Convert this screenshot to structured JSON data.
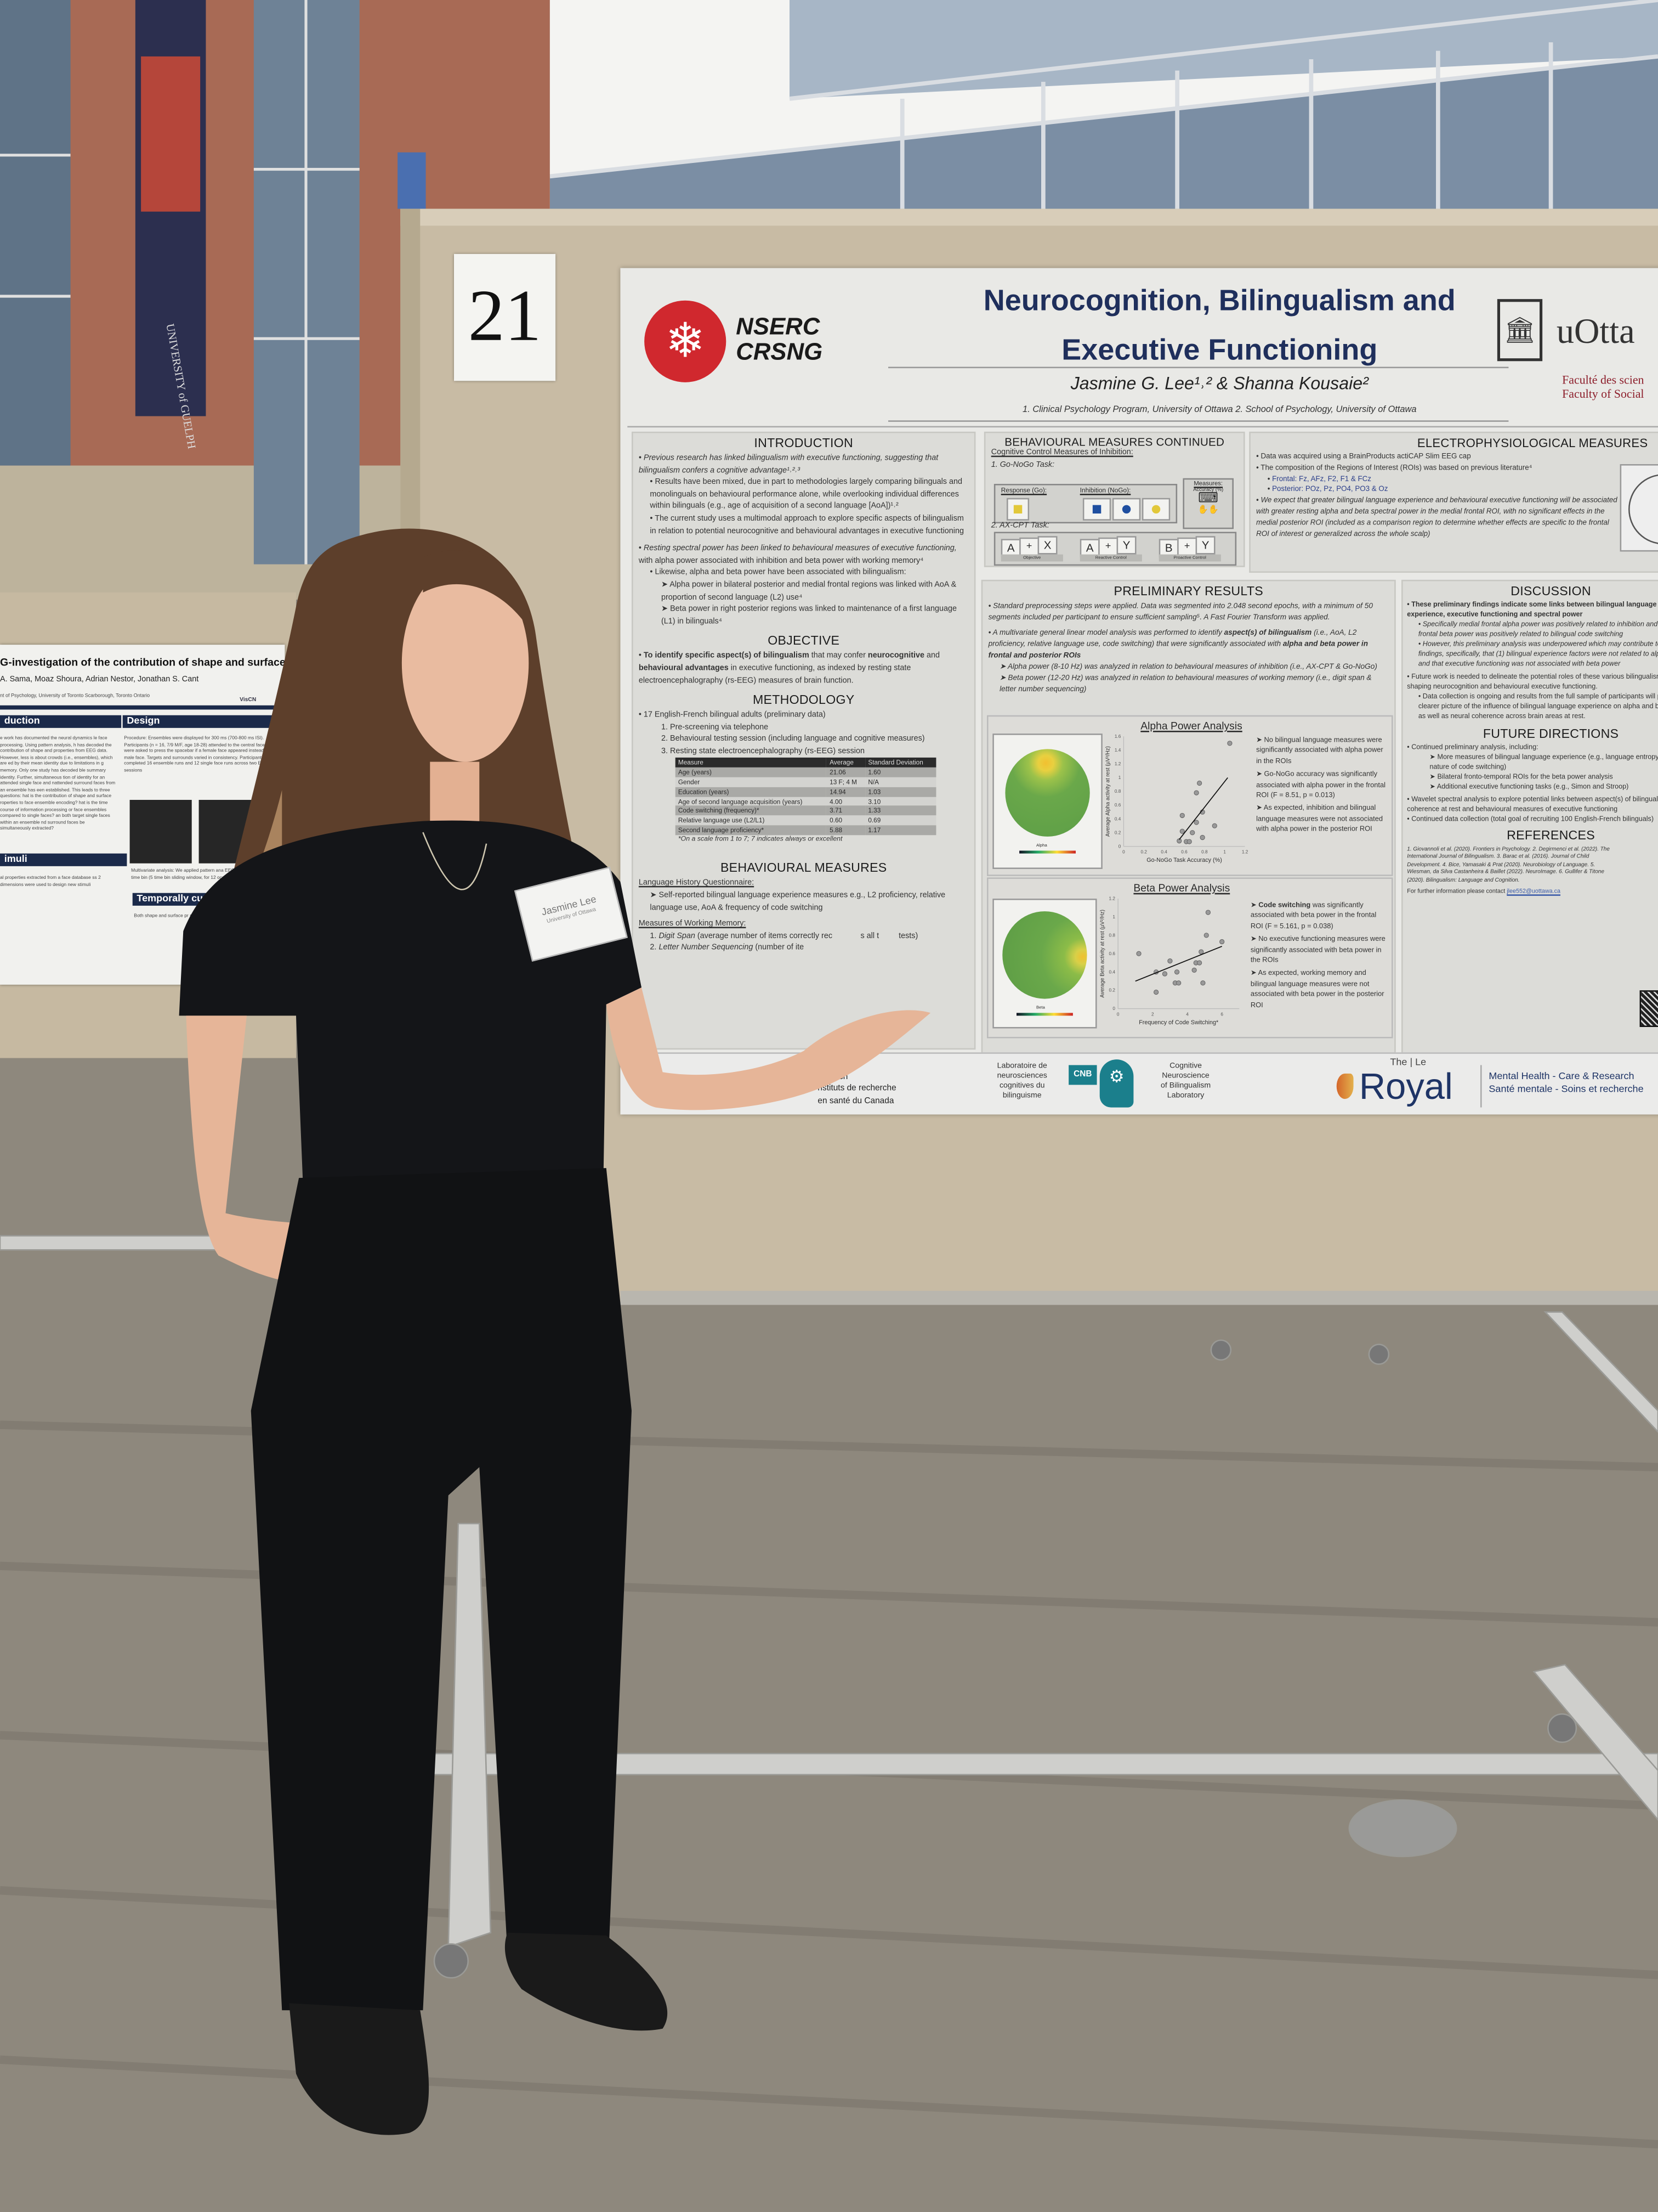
{
  "scene": {
    "booth_number": "21",
    "colors": {
      "board": "#c8bba4",
      "carpet": "#8d877c",
      "shirt": "#141518",
      "skin": "#e6b598",
      "hair": "#6a4a33",
      "poster_title": "#1f2f5c",
      "nserc_red": "#d0282e",
      "cnb_teal": "#1b7f8c"
    },
    "name_badge": {
      "name": "Jasmine Lee",
      "affiliation": "University of Ottawa"
    },
    "banner_text": "UNIVERSITY of GUELPH"
  },
  "left_poster": {
    "title": "G-investigation of the contribution of shape and surface properties i",
    "authors": "A. Sama, Moaz Shoura, Adrian Nestor, Jonathan S. Cant",
    "affiliation": "nt of Psychology, University of Toronto Scarborough, Toronto Ontario",
    "logo": "VisCN",
    "sections": {
      "intro": "duction",
      "design": "Design",
      "stimuli": "imuli",
      "temporal": "Temporally cumulati"
    },
    "intro_text": "e work has documented the neural dynamics le face processing. Using pattern analysis, h has decoded the contribution of shape and properties from EEG data. However, less is about crowds (i.e., ensembles), which are ed by their mean identity due to limitations in g memory. Only one study has decoded ble summary identity. Further, simultaneous tion of identity for an attended single face and nattended surround faces from an ensemble has een established. This leads to three questions: hat is the contribution of shape and surface roperties to face ensemble encoding? hat is the time course of information processing or face ensembles compared to single faces? an both target single faces within an ensemble nd surround faces be simultaneously extracted?",
    "design_text": "Procedure: Ensembles were displayed for 300 ms (700-800 ms ISI). Participants (n = 16, 7/9 M/F, age 18-28) attended to the central face and were asked to press the spacebar if a female face appeared instead of a male face. Targets and surrounds varied in consistency. Participants completed 16 ensemble runs and 12 single face runs across two EEG sessions",
    "multivariate_text": "Multivariate analysis: We applied pattern ana EEG signals at each time bin (5 time bin sliding window, for 12 occipotemporal el",
    "stimuli_text": "al properties extracted from a face database ss 2 dimensions were used to design new stimuli",
    "temporal_text": "Both shape and surface pr single face and face ensembl"
  },
  "poster": {
    "logo_nserc": [
      "NSERC",
      "CRSNG"
    ],
    "title_lines": [
      "Neurocognition, Bilingualism and",
      "Executive Functioning"
    ],
    "authors": "Jasmine G. Lee¹˒² & Shanna Kousaie²",
    "affiliations": "1. Clinical Psychology Program, University of Ottawa  2. School of Psychology, University of Ottawa",
    "uottawa": {
      "wordmark": "uOtta",
      "faculty_fr": "Faculté des scien",
      "faculty_en": "Faculty of Social"
    },
    "introduction": {
      "heading": "INTRODUCTION",
      "b1": "Previous research has linked bilingualism with executive functioning, suggesting that bilingualism confers a cognitive advantage¹˒²˒³",
      "b1a": "Results have been mixed, due in part to methodologies largely comparing bilinguals and monolinguals on behavioural performance alone, while overlooking individual differences within bilinguals (e.g., age of acquisition of a second language [AoA])¹˒²",
      "b1b": "The current study uses a multimodal approach to explore specific aspects of bilingualism in relation to potential neurocognitive and behavioural advantages in executive functioning",
      "b2_italic": "Resting spectral power has been linked to behavioural measures of executive functioning,",
      "b2_rest": " with alpha power associated with inhibition and beta power with working memory⁴",
      "b2a": "Likewise, alpha and beta power have been associated with bilingualism:",
      "b2a1": "Alpha power in bilateral posterior and medial frontal regions was linked with AoA & proportion of second language (L2) use⁴",
      "b2a2": "Beta power in right posterior regions was linked to maintenance of a first language (L1) in bilinguals⁴"
    },
    "objective": {
      "heading": "OBJECTIVE",
      "p1": "To identify specific aspect(s) of bilingualism",
      "p2": " that may confer ",
      "p3": "neurocognitive",
      "p4": " and ",
      "p5": "behavioural advantages",
      "p6": " in executive functioning, as indexed by resting state electroencephalography (rs-EEG) measures of brain function."
    },
    "methodology": {
      "heading": "METHODOLOGY",
      "b1": "17 English-French bilingual adults (preliminary data)",
      "steps": [
        "1.  Pre-screening via telephone",
        "2.  Behavioural testing session (including language and cognitive measures)",
        "3.  Resting state electroencephalography (rs-EEG) session"
      ],
      "table": {
        "headers": [
          "Measure",
          "Average",
          "Standard Deviation"
        ],
        "rows": [
          [
            "Age (years)",
            "21.06",
            "1.60"
          ],
          [
            "Gender",
            "13 F; 4 M",
            "N/A"
          ],
          [
            "Education (years)",
            "14.94",
            "1.03"
          ],
          [
            "Age of second language acquisition (years)",
            "4.00",
            "3.10"
          ],
          [
            "Code switching (frequency)*",
            "3.71",
            "1.33"
          ],
          [
            "Relative language use (L2/L1)",
            "0.60",
            "0.69"
          ],
          [
            "Second language proficiency*",
            "5.88",
            "1.17"
          ]
        ]
      },
      "note": "*On a scale from  1 to 7; 7 indicates always or excellent"
    },
    "behavioural": {
      "heading": "BEHAVIOURAL MEASURES",
      "lhq": "Language History Questionnaire:",
      "lhq_item": "Self-reported bilingual language experience measures e.g., L2 proficiency, relative language use, AoA & frequency of code switching",
      "wm": "Measures of Working Memory:",
      "wm1_name": "Digit Span",
      "wm1_rest": " (average number of items correctly rec",
      "wm1_tail": "s all t",
      "wm1_end": "tests)",
      "wm2_name": "Letter Number Sequencing",
      "wm2_rest": " (number of ite"
    },
    "behavioural_continued": {
      "heading": "BEHAVIOURAL MEASURES CONTINUED",
      "sub": "Cognitive Control Measures of Inhibition:",
      "task1": "1. Go-NoGo Task:",
      "go": "Response (Go):",
      "nogo": "Inhibition (NoGo):",
      "measures": "Measures:",
      "accuracy": "Accuracy (%)",
      "task2": "2. AX-CPT Task:",
      "cpt": [
        {
          "a": "A",
          "b": "X",
          "label": "Objective"
        },
        {
          "a": "A",
          "b": "Y",
          "label": "Reactive Control"
        },
        {
          "a": "B",
          "b": "Y",
          "label": "Proactive Control"
        }
      ],
      "plus": "+",
      "shape_colors": {
        "yellow": "#e2c83a",
        "blue": "#1f4fa0"
      }
    },
    "electrophysiological": {
      "heading": "ELECTROPHYSIOLOGICAL MEASURES",
      "b1": "Data was acquired using a BrainProducts actiCAP Slim EEG cap",
      "b2": "The composition of the Regions of Interest (ROIs) was based on previous literature⁴",
      "frontal": "Frontal: Fz, AFz, F2, F1 & FCz",
      "posterior": "Posterior: POz, Pz, PO4, PO3 & Oz",
      "b3": "We expect that greater bilingual language experience and behavioural executive functioning will be associated with greater resting alpha and beta spectral power in the medial frontal ROI, with no significant effects in the medial posterior ROI (included as a comparison region to determine whether effects are specific to the frontal ROI of interest or generalized across the whole scalp)"
    },
    "preliminary_results": {
      "heading": "PRELIMINARY RESULTS",
      "b1": "Standard preprocessing steps were applied. Data was segmented into 2.048 second epochs, with a minimum of 50 segments included per participant to ensure sufficient sampling⁵. A Fast Fourier Transform was applied.",
      "b2a": "A multivariate general linear model analysis was performed to identify ",
      "b2b": "aspect(s) of bilingualism",
      "b2c": " (i.e., AoA, L2 proficiency, relative language use, code switching) that were significantly associated with ",
      "b2d": "alpha and beta power in frontal and posterior ROIs",
      "alpha_item": "Alpha power (8-10 Hz) was analyzed in relation to behavioural measures of inhibition (i.e., AX-CPT & Go-NoGo)",
      "beta_item": "Beta power (12-20 Hz) was analyzed in relation to behavioural measures of working memory (i.e., digit span & letter number sequencing)"
    },
    "alpha_analysis": {
      "title": "Alpha Power Analysis",
      "scalp_label": "Alpha",
      "xlabel": "Go-NoGo Task Accuracy (%)",
      "ylabel": "Average Alpha activity at rest (µV²/Hz)",
      "xticks": [
        "0",
        "0.2",
        "0.4",
        "0.6",
        "0.8",
        "1",
        "1.2"
      ],
      "yticks": [
        "0",
        "0.2",
        "0.4",
        "0.6",
        "0.8",
        "1",
        "1.2",
        "1.4",
        "1.6"
      ],
      "xlim": [
        0,
        1.2
      ],
      "ylim": [
        0,
        1.6
      ],
      "points": [
        [
          1.05,
          1.5
        ],
        [
          0.75,
          0.92
        ],
        [
          0.72,
          0.78
        ],
        [
          0.78,
          0.5
        ],
        [
          0.58,
          0.45
        ],
        [
          0.72,
          0.35
        ],
        [
          0.9,
          0.3
        ],
        [
          0.58,
          0.22
        ],
        [
          0.68,
          0.2
        ],
        [
          0.78,
          0.13
        ],
        [
          0.55,
          0.08
        ],
        [
          0.62,
          0.07
        ],
        [
          0.65,
          0.07
        ]
      ],
      "trend": [
        [
          0.55,
          0.1
        ],
        [
          1.03,
          1.0
        ]
      ],
      "notes": [
        "No bilingual language measures were significantly associated with alpha power in the ROIs",
        "Go-NoGo accuracy was significantly associated with alpha power in the frontal ROI (F = 8.51, p = 0.013)",
        "As expected, inhibition and bilingual language measures were not associated with alpha power in the posterior ROI"
      ]
    },
    "beta_analysis": {
      "title": "Beta Power Analysis",
      "scalp_label": "Beta",
      "xlabel": "Frequency of Code Switching*",
      "ylabel": "Average Beta activity at rest (µV²/Hz)",
      "xticks": [
        "0",
        "2",
        "4",
        "6"
      ],
      "yticks": [
        "0",
        "0.2",
        "0.4",
        "0.6",
        "0.8",
        "1",
        "1.2"
      ],
      "xlim": [
        0,
        7
      ],
      "ylim": [
        0,
        1.2
      ],
      "points": [
        [
          5.2,
          1.05
        ],
        [
          5.1,
          0.8
        ],
        [
          6,
          0.73
        ],
        [
          4.8,
          0.62
        ],
        [
          1.2,
          0.6
        ],
        [
          3,
          0.52
        ],
        [
          4.5,
          0.5
        ],
        [
          4.7,
          0.5
        ],
        [
          2.2,
          0.4
        ],
        [
          2.7,
          0.38
        ],
        [
          3.4,
          0.4
        ],
        [
          4.4,
          0.42
        ],
        [
          3.3,
          0.28
        ],
        [
          3.5,
          0.28
        ],
        [
          4.9,
          0.28
        ],
        [
          2.2,
          0.18
        ]
      ],
      "trend": [
        [
          1,
          0.3
        ],
        [
          6,
          0.68
        ]
      ],
      "notes_bold": "Code switching",
      "notes": [
        " was significantly associated with beta power in the frontal ROI  (F = 5.161, p = 0.038)",
        "No executive functioning measures were significantly associated with beta power in the ROIs",
        "As expected, working memory and bilingual language measures were not associated with beta power in the posterior ROI"
      ]
    },
    "discussion": {
      "heading": "DISCUSSION",
      "b1": "These preliminary findings indicate some links between bilingual language experience, executive functioning and spectral power",
      "b1a": "Specifically medial frontal alpha power was positively related to inhibition and medial frontal beta power was positively related to bilingual code switching",
      "b1b": "However, this preliminary analysis was underpowered which may contribute to the null findings, specifically, that (1) bilingual experience factors were not related to alpha power, and that executive functioning was not associated with beta power",
      "b2": "Future work is needed to delineate the potential roles of these various bilingualism factors in shaping neurocognition and behavioural executive functioning.",
      "b2a": "Data collection is ongoing and results from the full sample of participants will provide a clearer picture of the influence of bilingual language experience on alpha and beta power, as well as neural coherence across brain areas at rest."
    },
    "future_directions": {
      "heading": "FUTURE DIRECTIONS",
      "b1": "Continued preliminary analysis, including:",
      "b1a": "More measures of bilingual language experience (e.g., language entropy⁶ and the nature of code switching)",
      "b1b": "Bilateral fronto-temporal ROIs for the beta power analysis",
      "b1c": "Additional executive functioning tasks (e.g., Simon and Stroop)",
      "b2": "Wavelet spectral analysis to explore potential links between aspect(s) of bilingualism, neural coherence at rest and behavioural measures of executive functioning",
      "b3": "Continued data collection (total goal of recruiting 100 English-French bilinguals)"
    },
    "references": {
      "heading": "REFERENCES",
      "text": "1. Giovannoli et al. (2020). Frontiers in Psychology. 2. Degirmenci et al. (2022). The International Journal of Bilingualism. 3. Barac et al. (2016). Journal of Child Development. 4. Bice, Yamasaki & Prat (2020). Neurobiology of Language. 5. Wiesman, da Silva Castanheira & Baillet (2022). NeuroImage. 6. Gullifer & Titone (2020). Bilingualism: Language and Cognition.",
      "contact_label": "For further information please contact ",
      "contact_email": "jlee552@uottawa.ca"
    },
    "footer": {
      "cihr": [
        "utes of",
        "esearch",
        "nstituts de recherche",
        "en santé du Canada"
      ],
      "cnb_fr": [
        "Laboratoire de",
        "neurosciences",
        "cognitives du",
        "bilinguisme"
      ],
      "cnb_badge": "CNB",
      "cnb_en": [
        "Cognitive",
        "Neuroscience",
        "of Bilingualism",
        "Laboratory"
      ],
      "royal_the": "The | Le",
      "royal": "Royal",
      "royal_en": "Mental Health - Care & Research",
      "royal_fr": "Santé mentale - Soins et recherche"
    }
  }
}
